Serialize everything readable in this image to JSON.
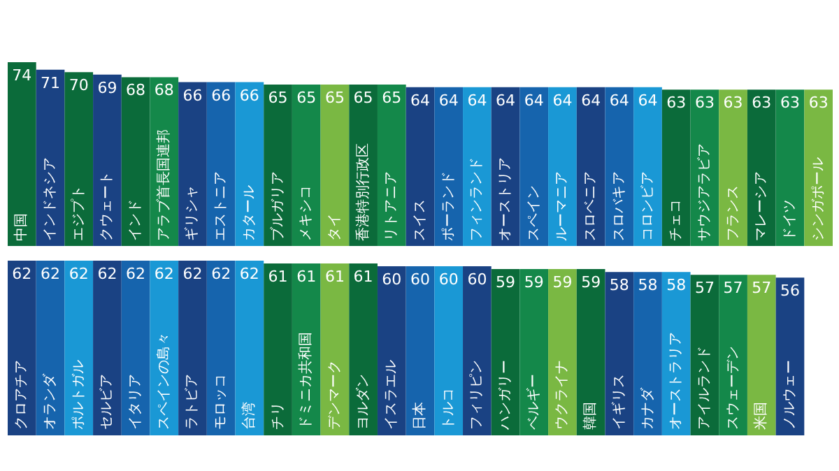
{
  "chart_data": [
    {
      "type": "bar",
      "data_labels": true,
      "categories": [
        "中国",
        "インドネシア",
        "エジプト",
        "クウェート",
        "インド",
        "アラブ首長国連邦",
        "ギリシャ",
        "エストニア",
        "カタール",
        "ブルガリア",
        "メキシコ",
        "タイ",
        "香港特別行政区",
        "リトアニア",
        "スイス",
        "ポーランド",
        "フィンランド",
        "オーストリア",
        "スペイン",
        "ルーマニア",
        "スロベニア",
        "スロバキア",
        "コロンビア",
        "チェコ",
        "サウジアラビア",
        "フランス",
        "マレーシア",
        "ドイツ",
        "シンガポール"
      ],
      "values": [
        74,
        71,
        70,
        69,
        68,
        68,
        66,
        66,
        66,
        65,
        65,
        65,
        65,
        65,
        64,
        64,
        64,
        64,
        64,
        64,
        64,
        64,
        64,
        63,
        63,
        63,
        63,
        63,
        63
      ],
      "colors": [
        "#0b6b3a",
        "#1a4283",
        "#0b6b3a",
        "#1a4283",
        "#0b6b3a",
        "#14884a",
        "#1a4283",
        "#1664ad",
        "#1a98d5",
        "#0b6b3a",
        "#14884a",
        "#7ab843",
        "#0b6b3a",
        "#14884a",
        "#1a4283",
        "#1664ad",
        "#1a98d5",
        "#1a4283",
        "#1664ad",
        "#1a98d5",
        "#1a4283",
        "#1664ad",
        "#1a98d5",
        "#0b6b3a",
        "#14884a",
        "#7ab843",
        "#0b6b3a",
        "#14884a",
        "#7ab843"
      ]
    },
    {
      "type": "bar",
      "data_labels": true,
      "categories": [
        "クロアチア",
        "オランダ",
        "ポルトガル",
        "セルビア",
        "イタリア",
        "スペインの島々",
        "ラトビア",
        "モロッコ",
        "台湾",
        "チリ",
        "ドミニカ共和国",
        "デンマーク",
        "ヨルダン",
        "イスラエル",
        "日本",
        "トルコ",
        "フィリピン",
        "ハンガリー",
        "ベルギー",
        "ウクライナ",
        "韓国",
        "イギリス",
        "カナダ",
        "オーストラリア",
        "アイルランド",
        "スウェーデン",
        "米国",
        "ノルウェー"
      ],
      "values": [
        62,
        62,
        62,
        62,
        62,
        62,
        62,
        62,
        62,
        61,
        61,
        61,
        61,
        60,
        60,
        60,
        60,
        59,
        59,
        59,
        59,
        58,
        58,
        58,
        57,
        57,
        57,
        56
      ],
      "colors": [
        "#1a4283",
        "#1664ad",
        "#1a98d5",
        "#1a4283",
        "#1664ad",
        "#1a98d5",
        "#1a4283",
        "#1664ad",
        "#1a98d5",
        "#0b6b3a",
        "#14884a",
        "#7ab843",
        "#0b6b3a",
        "#1a4283",
        "#1664ad",
        "#1a98d5",
        "#1a4283",
        "#0b6b3a",
        "#14884a",
        "#7ab843",
        "#0b6b3a",
        "#1a4283",
        "#1664ad",
        "#1a98d5",
        "#0b6b3a",
        "#14884a",
        "#7ab843",
        "#1a4283"
      ]
    }
  ]
}
